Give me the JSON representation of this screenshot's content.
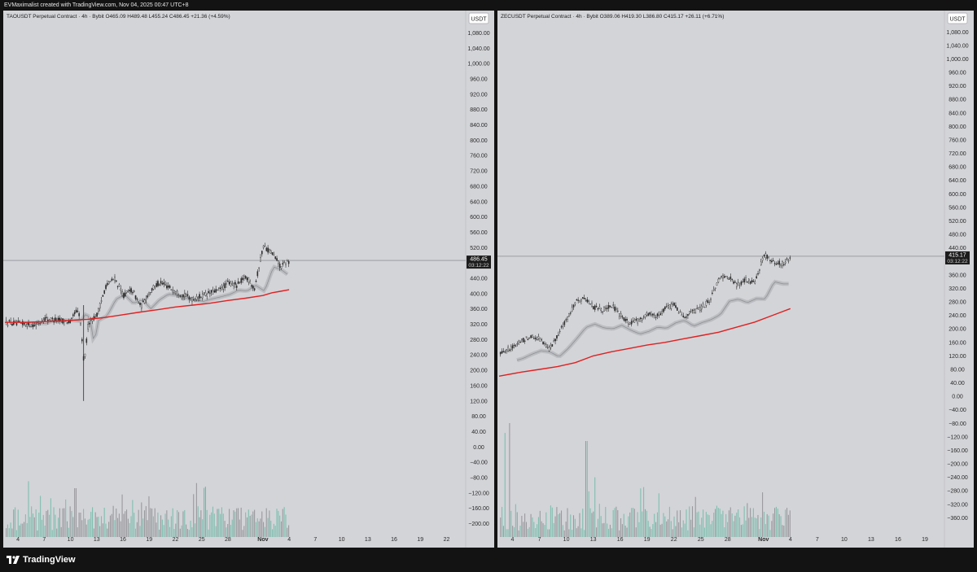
{
  "header": {
    "attribution": "EVMaximalist created with TradingView.com, Nov 04, 2025 00:47 UTC+8"
  },
  "footer": {
    "brand": "TradingView"
  },
  "colors": {
    "background": "#d3d4d8",
    "candle": "#2b2b2b",
    "ma_red": "#e02020",
    "ma_band": "#a8aaaf",
    "volume_up": "#7fbfb0",
    "volume_down": "#9a9a9e",
    "price_line": "#7a7c82",
    "label_bg": "#1c1c1c"
  },
  "chart_data": [
    {
      "type": "line",
      "title": "TAOUSDT Perpetual Contract · 4h · Bybit  O465.09  H489.48  L455.24  C486.45  +21.36 (+4.59%)",
      "currency": "USDT",
      "last_price": "486.45",
      "countdown": "03:12:22",
      "xlabel": "",
      "ylabel": "",
      "ylim": [
        -220,
        1100
      ],
      "y_ticks": [
        "1,080.00",
        "1,040.00",
        "1,000.00",
        "960.00",
        "920.00",
        "880.00",
        "840.00",
        "800.00",
        "760.00",
        "720.00",
        "680.00",
        "640.00",
        "600.00",
        "560.00",
        "520.00",
        "480.00",
        "440.00",
        "400.00",
        "360.00",
        "320.00",
        "280.00",
        "240.00",
        "200.00",
        "160.00",
        "120.00",
        "80.00",
        "40.00",
        "0.00",
        "−40.00",
        "−80.00",
        "−120.00",
        "−160.00",
        "−200.00"
      ],
      "y_tick_values": [
        1080,
        1040,
        1000,
        960,
        920,
        880,
        840,
        800,
        760,
        720,
        680,
        640,
        600,
        560,
        520,
        480,
        440,
        400,
        360,
        320,
        280,
        240,
        200,
        160,
        120,
        80,
        40,
        0,
        -40,
        -80,
        -120,
        -160,
        -200
      ],
      "x_ticks": [
        "4",
        "7",
        "10",
        "13",
        "16",
        "19",
        "22",
        "25",
        "28",
        "Nov",
        "4",
        "7",
        "10",
        "13",
        "16",
        "19",
        "22"
      ],
      "x_tick_days": [
        4,
        7,
        10,
        13,
        16,
        19,
        22,
        25,
        28,
        32,
        35,
        38,
        41,
        44,
        47,
        50,
        53
      ],
      "x_range_days": [
        2.5,
        55
      ],
      "series": [
        {
          "x": [
            2.5,
            4,
            6,
            7,
            8,
            9,
            10,
            10.5,
            11,
            11.5,
            12,
            13,
            14,
            15,
            16,
            17,
            18,
            19,
            20,
            21,
            22,
            23,
            24,
            25,
            26,
            27,
            28,
            29,
            30,
            31,
            32,
            33,
            34,
            35
          ],
          "y": [
            325,
            322,
            318,
            335,
            332,
            330,
            325,
            355,
            345,
            215,
            325,
            345,
            420,
            440,
            395,
            410,
            365,
            405,
            428,
            420,
            405,
            395,
            385,
            395,
            402,
            410,
            428,
            422,
            445,
            415,
            525,
            505,
            470,
            486
          ]
        },
        {
          "x": [
            2.5,
            5,
            8,
            10,
            11,
            12,
            14,
            16,
            18,
            20,
            22,
            24,
            26,
            28,
            30,
            32,
            33,
            34,
            35
          ],
          "y": [
            325,
            325,
            328,
            330,
            332,
            333,
            338,
            345,
            352,
            358,
            365,
            370,
            375,
            382,
            388,
            395,
            402,
            406,
            410
          ]
        }
      ]
    },
    {
      "type": "line",
      "title": "ZECUSDT Perpetual Contract · 4h · Bybit  O389.06  H419.30  L386.80  C415.17  +26.11 (+6.71%)",
      "currency": "USDT",
      "last_price": "415.17",
      "countdown": "03:12:22",
      "xlabel": "",
      "ylabel": "",
      "ylim": [
        -400,
        1100
      ],
      "y_ticks": [
        "1,080.00",
        "1,040.00",
        "1,000.00",
        "960.00",
        "920.00",
        "880.00",
        "840.00",
        "800.00",
        "760.00",
        "720.00",
        "680.00",
        "640.00",
        "600.00",
        "560.00",
        "520.00",
        "480.00",
        "440.00",
        "400.00",
        "360.00",
        "320.00",
        "280.00",
        "240.00",
        "200.00",
        "160.00",
        "120.00",
        "80.00",
        "40.00",
        "0.00",
        "−40.00",
        "−80.00",
        "−120.00",
        "−160.00",
        "−200.00",
        "−240.00",
        "−280.00",
        "−320.00",
        "−360.00"
      ],
      "y_tick_values": [
        1080,
        1040,
        1000,
        960,
        920,
        880,
        840,
        800,
        760,
        720,
        680,
        640,
        600,
        560,
        520,
        480,
        440,
        400,
        360,
        320,
        280,
        240,
        200,
        160,
        120,
        80,
        40,
        0,
        -40,
        -80,
        -120,
        -160,
        -200,
        -240,
        -280,
        -320,
        -360
      ],
      "x_ticks": [
        "4",
        "7",
        "10",
        "13",
        "16",
        "19",
        "22",
        "25",
        "28",
        "Nov",
        "4",
        "7",
        "10",
        "13",
        "16",
        "19"
      ],
      "x_tick_days": [
        4,
        7,
        10,
        13,
        16,
        19,
        22,
        25,
        28,
        32,
        35,
        38,
        41,
        44,
        47,
        50
      ],
      "x_range_days": [
        2.5,
        52
      ],
      "series": [
        {
          "x": [
            2.5,
            4,
            5,
            6,
            7,
            8,
            9,
            10,
            11,
            12,
            13,
            14,
            15,
            16,
            17,
            18,
            19,
            20,
            21,
            22,
            23,
            24,
            25,
            26,
            27,
            28,
            29,
            30,
            31,
            32,
            33,
            34,
            35
          ],
          "y": [
            130,
            145,
            165,
            180,
            170,
            140,
            180,
            230,
            280,
            290,
            265,
            255,
            270,
            240,
            215,
            225,
            245,
            235,
            260,
            270,
            235,
            250,
            262,
            285,
            350,
            355,
            330,
            345,
            335,
            420,
            400,
            392,
            415
          ]
        },
        {
          "x": [
            2.5,
            5,
            7,
            9,
            11,
            13,
            15,
            17,
            19,
            21,
            23,
            25,
            27,
            29,
            31,
            33,
            35
          ],
          "y": [
            60,
            72,
            80,
            88,
            100,
            120,
            132,
            142,
            152,
            160,
            170,
            180,
            190,
            205,
            220,
            240,
            260
          ]
        }
      ]
    }
  ]
}
